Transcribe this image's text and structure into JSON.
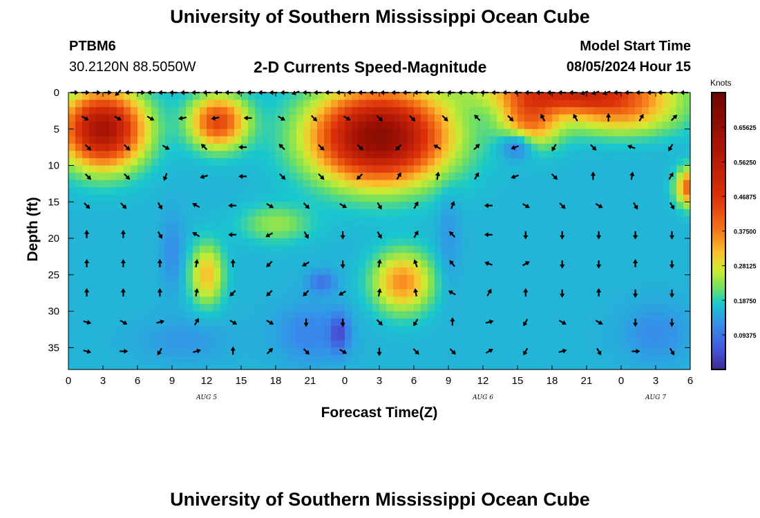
{
  "header": {
    "title": "University of Southern Mississippi Ocean Cube",
    "station": "PTBM6",
    "coords": "30.2120N  88.5050W",
    "subtitle": "2-D Currents Speed-Magnitude",
    "model_label": "Model Start Time",
    "model_time": "08/05/2024 Hour 15"
  },
  "footer": {
    "title": "University of Southern Mississippi Ocean Cube"
  },
  "chart_data": {
    "type": "heatmap",
    "title": "2-D Currents Speed-Magnitude",
    "xlabel": "Forecast Time(Z)",
    "ylabel": "Depth (ft)",
    "xlim": [
      0,
      54
    ],
    "ylim": [
      0,
      38
    ],
    "y_inverted": true,
    "x_tick_values": [
      0,
      3,
      6,
      9,
      12,
      15,
      18,
      21,
      24,
      27,
      30,
      33,
      36,
      39,
      42,
      45,
      48,
      51,
      54
    ],
    "x_tick_labels": [
      "0",
      "3",
      "6",
      "9",
      "12",
      "15",
      "18",
      "21",
      "0",
      "3",
      "6",
      "9",
      "12",
      "15",
      "18",
      "21",
      "0",
      "3",
      "6"
    ],
    "y_tick_values": [
      0,
      5,
      10,
      15,
      20,
      25,
      30,
      35
    ],
    "y_tick_labels": [
      "0",
      "5",
      "10",
      "15",
      "20",
      "25",
      "30",
      "35"
    ],
    "date_labels": [
      {
        "text": "AUG 5",
        "x": 12
      },
      {
        "text": "AUG 6",
        "x": 36
      },
      {
        "text": "AUG 7",
        "x": 51
      }
    ],
    "colorbar": {
      "title": "Knots",
      "min": 0,
      "max": 0.75,
      "ticks": [
        0.65625,
        0.5625,
        0.46875,
        0.375,
        0.28125,
        0.1875,
        0.09375
      ],
      "tick_labels": [
        "0.65625",
        "0.56250",
        "0.46875",
        "0.37500",
        "0.28125",
        "0.18750",
        "0.09375"
      ]
    },
    "speed_blobs": [
      {
        "x": 3,
        "y": 5,
        "sx": 3.4,
        "sy": 5,
        "a": 0.45
      },
      {
        "x": 13,
        "y": 4,
        "sx": 2.4,
        "sy": 3.5,
        "a": 0.28
      },
      {
        "x": 27,
        "y": 6,
        "sx": 5.5,
        "sy": 6,
        "a": 0.52
      },
      {
        "x": 44,
        "y": 0,
        "sx": 7,
        "sy": 2.5,
        "a": 0.32
      },
      {
        "x": 40,
        "y": 4,
        "sx": 2.5,
        "sy": 3.5,
        "a": 0.22
      },
      {
        "x": 48,
        "y": 3,
        "sx": 5,
        "sy": 3,
        "a": 0.16
      },
      {
        "x": 54,
        "y": 13,
        "sx": 1.2,
        "sy": 2.5,
        "a": 0.25
      },
      {
        "x": 29,
        "y": 26,
        "sx": 2.5,
        "sy": 4,
        "a": 0.2
      },
      {
        "x": 12,
        "y": 25,
        "sx": 1.4,
        "sy": 4,
        "a": 0.16
      },
      {
        "x": 18,
        "y": 18,
        "sx": 3,
        "sy": 2.5,
        "a": 0.08
      },
      {
        "x": 23.5,
        "y": 33,
        "sx": 0.8,
        "sy": 2.5,
        "a": -0.1
      },
      {
        "x": 22,
        "y": 26,
        "sx": 1.2,
        "sy": 1.5,
        "a": -0.07
      },
      {
        "x": 21,
        "y": 33,
        "sx": 3,
        "sy": 4,
        "a": -0.05
      },
      {
        "x": 9,
        "y": 22,
        "sx": 1,
        "sy": 5,
        "a": -0.04
      },
      {
        "x": 33,
        "y": 20,
        "sx": 1,
        "sy": 8,
        "a": -0.03
      },
      {
        "x": 51,
        "y": 33,
        "sx": 3,
        "sy": 4,
        "a": -0.04
      },
      {
        "x": 10,
        "y": 34,
        "sx": 4,
        "sy": 3,
        "a": -0.03
      },
      {
        "x": 39,
        "y": 7,
        "sx": 1.5,
        "sy": 2,
        "a": -0.12
      }
    ],
    "vector_rows": [
      {
        "depth": 0.0,
        "angles": [
          0,
          0,
          0,
          0,
          225,
          180,
          0,
          180,
          180,
          180,
          180,
          180,
          180,
          180,
          180,
          180,
          180,
          180,
          180,
          180,
          200,
          180,
          180,
          180,
          180,
          180,
          180,
          180,
          180,
          180,
          180,
          180,
          180,
          180,
          180,
          180,
          180,
          180,
          180,
          180,
          180,
          180,
          180,
          180,
          180,
          180,
          200,
          200,
          200,
          180,
          180,
          180,
          180,
          180,
          180,
          180
        ]
      },
      {
        "depth": 3.5,
        "angles": [
          330,
          330,
          330,
          190,
          190,
          180,
          330,
          315,
          330,
          315,
          315,
          315,
          135,
          315,
          120,
          120,
          90,
          60,
          45
        ]
      },
      {
        "depth": 7.5,
        "angles": [
          315,
          315,
          330,
          135,
          180,
          135,
          315,
          315,
          225,
          150,
          45,
          200,
          240,
          315,
          160,
          240
        ]
      },
      {
        "depth": 11.5,
        "angles": [
          315,
          315,
          250,
          195,
          180,
          315,
          315,
          225,
          60,
          80,
          60,
          200,
          315,
          90,
          80,
          60
        ]
      },
      {
        "depth": 15.5,
        "angles": [
          315,
          315,
          300,
          150,
          180,
          330,
          315,
          330,
          300,
          60,
          70,
          180,
          330,
          315,
          330,
          300,
          300
        ]
      },
      {
        "depth": 19.5,
        "angles": [
          90,
          90,
          300,
          150,
          180,
          210,
          300,
          270,
          300,
          60,
          135,
          180,
          270,
          270,
          270,
          270,
          270
        ]
      },
      {
        "depth": 23.5,
        "angles": [
          90,
          90,
          90,
          80,
          90,
          225,
          210,
          270,
          80,
          110,
          130,
          160,
          30,
          270,
          270,
          90,
          270
        ]
      },
      {
        "depth": 27.5,
        "angles": [
          90,
          90,
          90,
          80,
          225,
          225,
          225,
          210,
          80,
          100,
          150,
          60,
          90,
          270,
          90,
          270,
          270
        ]
      },
      {
        "depth": 31.5,
        "angles": [
          345,
          330,
          15,
          60,
          330,
          330,
          270,
          270,
          315,
          240,
          90,
          15,
          240,
          330,
          330,
          270,
          270
        ]
      },
      {
        "depth": 35.5,
        "angles": [
          345,
          0,
          240,
          15,
          90,
          45,
          315,
          330,
          270,
          315,
          315,
          30,
          240,
          15,
          300,
          0,
          300
        ]
      }
    ]
  }
}
